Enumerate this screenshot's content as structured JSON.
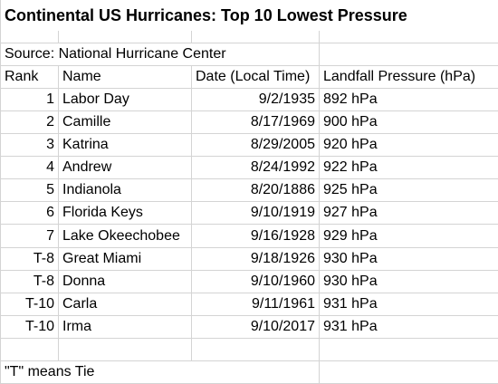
{
  "title": "Continental US Hurricanes: Top 10 Lowest Pressure",
  "source": "Source: National Hurricane Center",
  "headers": {
    "rank": "Rank",
    "name": "Name",
    "date": "Date (Local Time)",
    "pressure": "Landfall Pressure (hPa)"
  },
  "rows": [
    {
      "rank": "1",
      "name": "Labor Day",
      "date": "9/2/1935",
      "pressure": "892 hPa"
    },
    {
      "rank": "2",
      "name": "Camille",
      "date": "8/17/1969",
      "pressure": "900 hPa"
    },
    {
      "rank": "3",
      "name": "Katrina",
      "date": "8/29/2005",
      "pressure": "920 hPa"
    },
    {
      "rank": "4",
      "name": "Andrew",
      "date": "8/24/1992",
      "pressure": "922 hPa"
    },
    {
      "rank": "5",
      "name": "Indianola",
      "date": "8/20/1886",
      "pressure": "925 hPa"
    },
    {
      "rank": "6",
      "name": "Florida Keys",
      "date": "9/10/1919",
      "pressure": "927 hPa"
    },
    {
      "rank": "7",
      "name": "Lake Okeechobee",
      "date": "9/16/1928",
      "pressure": "929 hPa"
    },
    {
      "rank": "T-8",
      "name": "Great Miami",
      "date": "9/18/1926",
      "pressure": "930 hPa"
    },
    {
      "rank": "T-8",
      "name": "Donna",
      "date": "9/10/1960",
      "pressure": "930 hPa"
    },
    {
      "rank": "T-10",
      "name": "Carla",
      "date": "9/11/1961",
      "pressure": "931 hPa"
    },
    {
      "rank": "T-10",
      "name": "Irma",
      "date": "9/10/2017",
      "pressure": "931 hPa"
    }
  ],
  "footnote": "\"T\" means Tie"
}
